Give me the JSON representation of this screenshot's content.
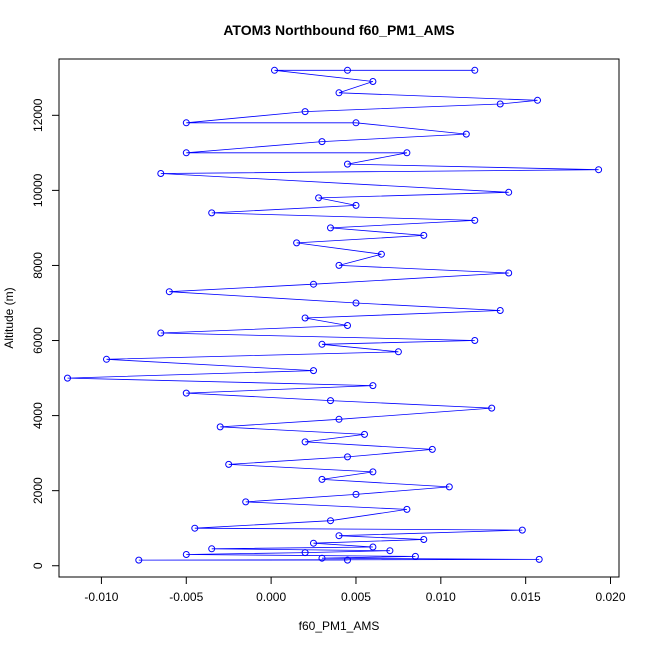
{
  "chart_data": {
    "type": "scatter",
    "title": "ATOM3 Northbound f60_PM1_AMS",
    "xlabel": "f60_PM1_AMS",
    "ylabel": "Altitude (m)",
    "xlim": [
      -0.0125,
      0.0205
    ],
    "ylim": [
      -300,
      13500
    ],
    "x_ticks": [
      -0.01,
      -0.005,
      0.0,
      0.005,
      0.01,
      0.015,
      0.02
    ],
    "x_tick_labels": [
      "-0.010",
      "-0.005",
      "0.000",
      "0.005",
      "0.010",
      "0.015",
      "0.020"
    ],
    "y_ticks": [
      0,
      2000,
      4000,
      6000,
      8000,
      10000,
      12000
    ],
    "y_tick_labels": [
      "0",
      "2000",
      "4000",
      "6000",
      "8000",
      "10000",
      "12000"
    ],
    "grid": false,
    "series": [
      {
        "color": "#0000ff",
        "marker": "open-circle",
        "line": true,
        "points": [
          [
            0.0045,
            150
          ],
          [
            -0.0078,
            150
          ],
          [
            0.0158,
            170
          ],
          [
            0.003,
            200
          ],
          [
            0.0085,
            250
          ],
          [
            -0.005,
            300
          ],
          [
            0.002,
            350
          ],
          [
            0.007,
            400
          ],
          [
            -0.0035,
            450
          ],
          [
            0.006,
            500
          ],
          [
            0.0025,
            600
          ],
          [
            0.009,
            700
          ],
          [
            0.004,
            800
          ],
          [
            0.0148,
            950
          ],
          [
            -0.0045,
            1000
          ],
          [
            0.0035,
            1200
          ],
          [
            0.008,
            1500
          ],
          [
            -0.0015,
            1700
          ],
          [
            0.005,
            1900
          ],
          [
            0.0105,
            2100
          ],
          [
            0.003,
            2300
          ],
          [
            0.006,
            2500
          ],
          [
            -0.0025,
            2700
          ],
          [
            0.0045,
            2900
          ],
          [
            0.0095,
            3100
          ],
          [
            0.002,
            3300
          ],
          [
            0.0055,
            3500
          ],
          [
            -0.003,
            3700
          ],
          [
            0.004,
            3900
          ],
          [
            0.013,
            4200
          ],
          [
            0.0035,
            4400
          ],
          [
            -0.005,
            4600
          ],
          [
            0.006,
            4800
          ],
          [
            -0.012,
            5000
          ],
          [
            0.0025,
            5200
          ],
          [
            -0.0097,
            5500
          ],
          [
            0.0075,
            5700
          ],
          [
            0.003,
            5900
          ],
          [
            0.012,
            6000
          ],
          [
            -0.0065,
            6200
          ],
          [
            0.0045,
            6400
          ],
          [
            0.002,
            6600
          ],
          [
            0.0135,
            6800
          ],
          [
            0.005,
            7000
          ],
          [
            -0.006,
            7300
          ],
          [
            0.0025,
            7500
          ],
          [
            0.014,
            7800
          ],
          [
            0.004,
            8000
          ],
          [
            0.0065,
            8300
          ],
          [
            0.0015,
            8600
          ],
          [
            0.009,
            8800
          ],
          [
            0.0035,
            9000
          ],
          [
            0.012,
            9200
          ],
          [
            -0.0035,
            9400
          ],
          [
            0.005,
            9600
          ],
          [
            0.0028,
            9800
          ],
          [
            0.014,
            9950
          ],
          [
            -0.0065,
            10450
          ],
          [
            0.0193,
            10550
          ],
          [
            0.0045,
            10700
          ],
          [
            0.008,
            11000
          ],
          [
            -0.005,
            11000
          ],
          [
            0.003,
            11300
          ],
          [
            0.0115,
            11500
          ],
          [
            0.005,
            11800
          ],
          [
            -0.005,
            11800
          ],
          [
            0.002,
            12100
          ],
          [
            0.0135,
            12300
          ],
          [
            0.0157,
            12400
          ],
          [
            0.004,
            12600
          ],
          [
            0.006,
            12900
          ],
          [
            0.0002,
            13200
          ],
          [
            0.012,
            13200
          ],
          [
            0.0045,
            13200
          ]
        ]
      }
    ]
  }
}
